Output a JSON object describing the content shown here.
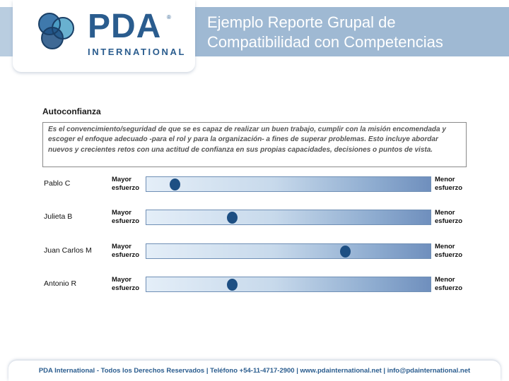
{
  "logo": {
    "wordmark": "PDA",
    "subtitle": "INTERNATIONAL",
    "registered": "®"
  },
  "header": {
    "title_line1": "Ejemplo Reporte Grupal de",
    "title_line2": "Compatibilidad con Competencias"
  },
  "competency": {
    "name": "Autoconfianza",
    "description": "Es el convencimiento/seguridad de que se es capaz de realizar un buen trabajo, cumplir con la misión encomendada y escoger el enfoque adecuado -para el rol y para la organización- a fines de superar problemas. Esto incluye abordar nuevos y crecientes retos con una actitud de confianza en sus propias capacidades, decisiones o puntos de vista."
  },
  "scale": {
    "left_label_1": "Mayor",
    "left_label_2": "esfuerzo",
    "right_label_1": "Menor",
    "right_label_2": "esfuerzo"
  },
  "people": [
    {
      "name": "Pablo C",
      "level": 0.1
    },
    {
      "name": "Julieta B",
      "level": 0.3
    },
    {
      "name": "Juan Carlos M",
      "level": 0.7
    },
    {
      "name": "Antonio R",
      "level": 0.3
    }
  ],
  "footer": {
    "text": "PDA International - Todos los Derechos Reservados | Teléfono +54-11-4717-2900 | www.pdainternational.net  | info@pdainternational.net"
  },
  "colors": {
    "brand_blue": "#2a5c8e",
    "header_band": "#9fb9d3",
    "marker": "#1d4f83"
  }
}
